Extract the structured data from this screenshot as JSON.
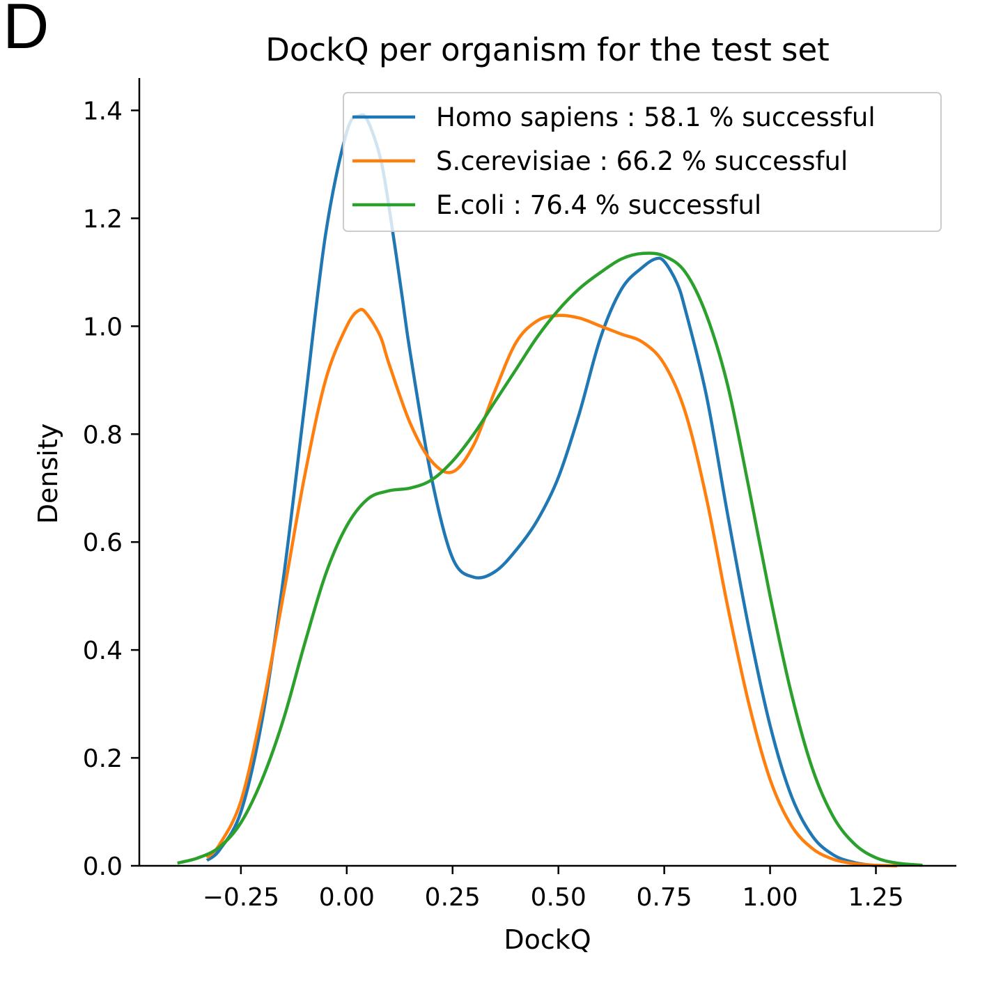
{
  "panel_label": "D",
  "chart_data": {
    "type": "line",
    "title": "DockQ per organism for the test set",
    "xlabel": "DockQ",
    "ylabel": "Density",
    "xlim": [
      -0.49,
      1.44
    ],
    "ylim": [
      0.0,
      1.46
    ],
    "xticks": [
      -0.25,
      0.0,
      0.25,
      0.5,
      0.75,
      1.0,
      1.25
    ],
    "xtick_labels": [
      "−0.25",
      "0.00",
      "0.25",
      "0.50",
      "0.75",
      "1.00",
      "1.25"
    ],
    "yticks": [
      0.0,
      0.2,
      0.4,
      0.6,
      0.8,
      1.0,
      1.2,
      1.4
    ],
    "ytick_labels": [
      "0.0",
      "0.2",
      "0.4",
      "0.6",
      "0.8",
      "1.0",
      "1.2",
      "1.4"
    ],
    "grid": false,
    "legend_position": "top-right",
    "series": [
      {
        "name": "Homo sapiens : 58.1 % successful",
        "color": "#1f77b4",
        "x": [
          -0.33,
          -0.3,
          -0.25,
          -0.2,
          -0.15,
          -0.1,
          -0.05,
          0.0,
          0.03,
          0.05,
          0.08,
          0.1,
          0.13,
          0.15,
          0.2,
          0.25,
          0.3,
          0.35,
          0.4,
          0.45,
          0.5,
          0.55,
          0.6,
          0.65,
          0.7,
          0.73,
          0.75,
          0.78,
          0.8,
          0.85,
          0.9,
          0.95,
          1.0,
          1.05,
          1.1,
          1.15,
          1.2,
          1.25
        ],
        "y": [
          0.01,
          0.03,
          0.1,
          0.27,
          0.53,
          0.85,
          1.17,
          1.36,
          1.39,
          1.38,
          1.31,
          1.22,
          1.06,
          0.95,
          0.72,
          0.57,
          0.535,
          0.545,
          0.585,
          0.64,
          0.72,
          0.84,
          0.98,
          1.07,
          1.11,
          1.125,
          1.12,
          1.08,
          1.03,
          0.87,
          0.65,
          0.44,
          0.26,
          0.13,
          0.055,
          0.02,
          0.006,
          0.0
        ]
      },
      {
        "name": "S.cerevisiae : 66.2 % successful",
        "color": "#ff7f0e",
        "x": [
          -0.33,
          -0.3,
          -0.25,
          -0.2,
          -0.15,
          -0.1,
          -0.05,
          0.0,
          0.03,
          0.05,
          0.08,
          0.1,
          0.15,
          0.2,
          0.25,
          0.3,
          0.35,
          0.4,
          0.45,
          0.5,
          0.55,
          0.6,
          0.65,
          0.7,
          0.75,
          0.8,
          0.85,
          0.9,
          0.95,
          1.0,
          1.05,
          1.1,
          1.15,
          1.2,
          1.25,
          1.3
        ],
        "y": [
          0.015,
          0.04,
          0.12,
          0.29,
          0.5,
          0.72,
          0.9,
          1.0,
          1.03,
          1.02,
          0.98,
          0.93,
          0.82,
          0.75,
          0.73,
          0.78,
          0.88,
          0.97,
          1.01,
          1.02,
          1.015,
          1.0,
          0.985,
          0.97,
          0.93,
          0.84,
          0.68,
          0.48,
          0.3,
          0.16,
          0.075,
          0.032,
          0.012,
          0.004,
          0.001,
          0.0
        ]
      },
      {
        "name": "E.coli : 76.4 % successful",
        "color": "#2ca02c",
        "x": [
          -0.4,
          -0.35,
          -0.3,
          -0.25,
          -0.2,
          -0.15,
          -0.1,
          -0.05,
          0.0,
          0.05,
          0.1,
          0.15,
          0.2,
          0.25,
          0.3,
          0.35,
          0.4,
          0.45,
          0.5,
          0.55,
          0.6,
          0.65,
          0.7,
          0.75,
          0.8,
          0.85,
          0.9,
          0.95,
          1.0,
          1.05,
          1.1,
          1.15,
          1.2,
          1.25,
          1.3,
          1.36
        ],
        "y": [
          0.005,
          0.015,
          0.035,
          0.08,
          0.16,
          0.27,
          0.41,
          0.54,
          0.63,
          0.68,
          0.695,
          0.7,
          0.715,
          0.75,
          0.8,
          0.86,
          0.92,
          0.98,
          1.03,
          1.07,
          1.1,
          1.125,
          1.135,
          1.13,
          1.1,
          1.02,
          0.89,
          0.7,
          0.5,
          0.32,
          0.18,
          0.09,
          0.04,
          0.015,
          0.005,
          0.001
        ]
      }
    ]
  }
}
